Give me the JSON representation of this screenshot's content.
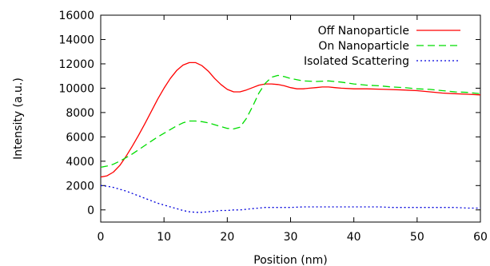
{
  "chart_data": {
    "type": "line",
    "xlabel": "Position (nm)",
    "ylabel": "Intensity (a.u.)",
    "xlim": [
      0,
      60
    ],
    "ylim": [
      -1000,
      16000
    ],
    "xticks": [
      0,
      10,
      20,
      30,
      40,
      50,
      60
    ],
    "yticks": [
      0,
      2000,
      4000,
      6000,
      8000,
      10000,
      12000,
      14000,
      16000
    ],
    "grid": false,
    "legend_position": "top-right",
    "series": [
      {
        "name": "Off Nanoparticle",
        "color": "#ff0000",
        "style": "solid",
        "x": [
          0,
          1,
          2,
          3,
          4,
          5,
          6,
          7,
          8,
          9,
          10,
          11,
          12,
          13,
          14,
          15,
          16,
          17,
          18,
          19,
          20,
          21,
          22,
          23,
          24,
          25,
          26,
          27,
          28,
          29,
          30,
          31,
          32,
          33,
          34,
          35,
          36,
          37,
          38,
          40,
          42,
          45,
          48,
          50,
          52,
          54,
          56,
          58,
          60
        ],
        "y": [
          2700,
          2800,
          3100,
          3650,
          4400,
          5250,
          6150,
          7100,
          8100,
          9100,
          10000,
          10800,
          11450,
          11900,
          12100,
          12100,
          11850,
          11400,
          10800,
          10300,
          9900,
          9700,
          9700,
          9850,
          10050,
          10250,
          10350,
          10350,
          10300,
          10200,
          10050,
          9950,
          9950,
          10000,
          10050,
          10100,
          10100,
          10050,
          10000,
          9950,
          9950,
          9900,
          9850,
          9800,
          9700,
          9600,
          9550,
          9500,
          9450
        ]
      },
      {
        "name": "On Nanoparticle",
        "color": "#00dd00",
        "style": "dashed",
        "x": [
          0,
          1,
          2,
          3,
          4,
          5,
          6,
          7,
          8,
          9,
          10,
          11,
          12,
          13,
          14,
          15,
          16,
          17,
          18,
          19,
          20,
          21,
          22,
          23,
          24,
          25,
          26,
          27,
          28,
          29,
          30,
          32,
          34,
          36,
          38,
          40,
          42,
          44,
          46,
          48,
          50,
          52,
          54,
          56,
          58,
          60
        ],
        "y": [
          3500,
          3600,
          3750,
          4000,
          4300,
          4600,
          4950,
          5300,
          5650,
          6000,
          6300,
          6600,
          6900,
          7150,
          7300,
          7300,
          7250,
          7150,
          7000,
          6850,
          6700,
          6650,
          6800,
          7500,
          8500,
          9600,
          10400,
          10900,
          11050,
          10950,
          10800,
          10600,
          10550,
          10600,
          10500,
          10350,
          10250,
          10200,
          10100,
          10050,
          9950,
          9900,
          9800,
          9700,
          9650,
          9550
        ]
      },
      {
        "name": "Isolated Scattering",
        "color": "#0000dd",
        "style": "dotted",
        "x": [
          0,
          1,
          2,
          3,
          4,
          5,
          6,
          7,
          8,
          9,
          10,
          11,
          12,
          13,
          14,
          15,
          16,
          17,
          18,
          19,
          20,
          21,
          22,
          23,
          24,
          25,
          26,
          28,
          30,
          32,
          34,
          36,
          38,
          40,
          42,
          44,
          46,
          48,
          50,
          52,
          54,
          56,
          58,
          60
        ],
        "y": [
          2000,
          1950,
          1850,
          1700,
          1550,
          1350,
          1150,
          950,
          750,
          550,
          400,
          250,
          100,
          -50,
          -150,
          -200,
          -200,
          -150,
          -100,
          -50,
          -50,
          0,
          0,
          50,
          100,
          150,
          200,
          200,
          200,
          250,
          250,
          250,
          250,
          250,
          250,
          250,
          200,
          200,
          200,
          200,
          200,
          200,
          150,
          150
        ]
      }
    ]
  }
}
